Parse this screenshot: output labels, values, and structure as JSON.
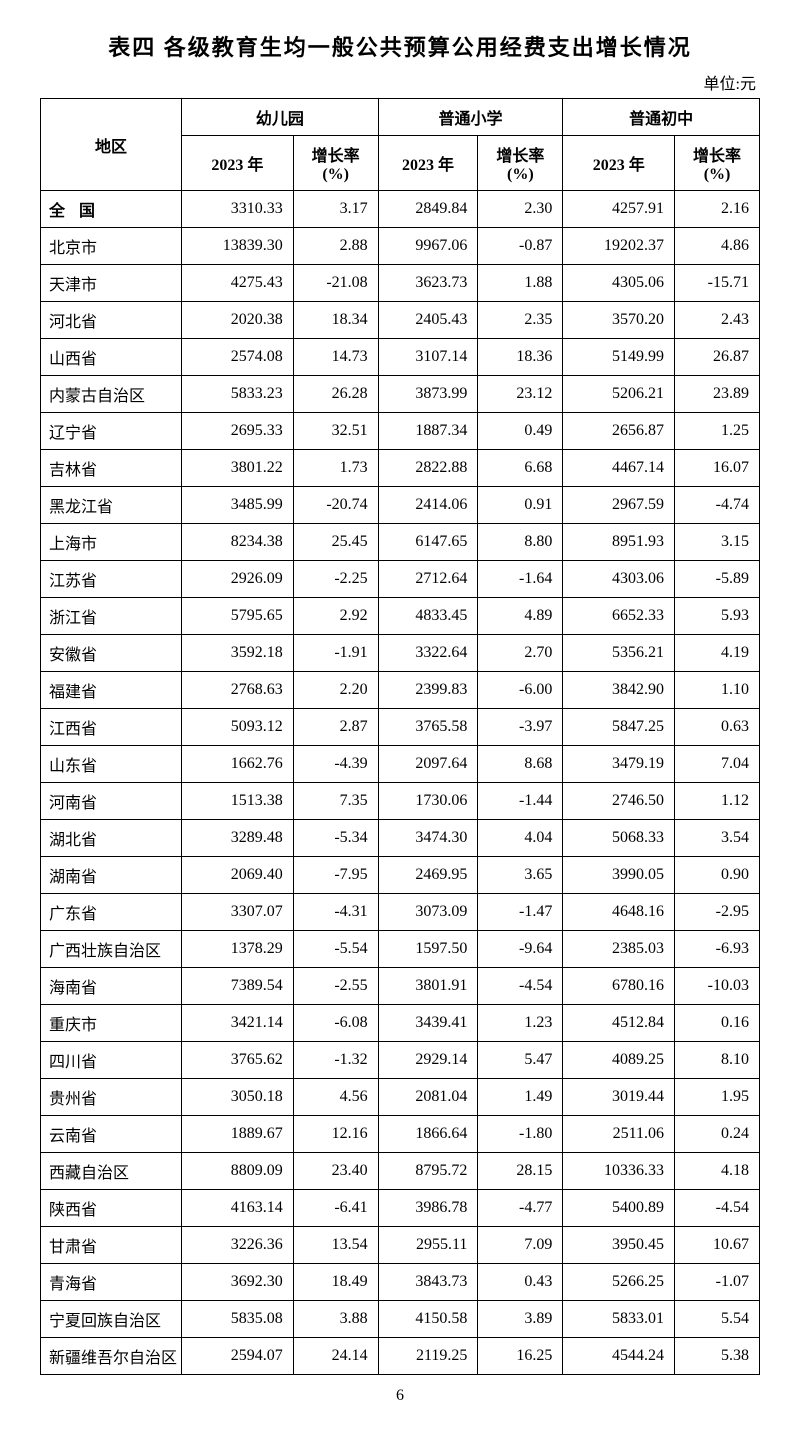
{
  "title": "表四  各级教育生均一般公共预算公用经费支出增长情况",
  "unit": "单位:元",
  "pageNumber": "6",
  "headers": {
    "region": "地区",
    "groups": [
      "幼儿园",
      "普通小学",
      "普通初中"
    ],
    "sub": [
      "2023 年",
      "增长率\n(%)"
    ]
  },
  "rows": [
    {
      "region": "全国",
      "national": true,
      "values": [
        "3310.33",
        "3.17",
        "2849.84",
        "2.30",
        "4257.91",
        "2.16"
      ]
    },
    {
      "region": "北京市",
      "values": [
        "13839.30",
        "2.88",
        "9967.06",
        "-0.87",
        "19202.37",
        "4.86"
      ]
    },
    {
      "region": "天津市",
      "values": [
        "4275.43",
        "-21.08",
        "3623.73",
        "1.88",
        "4305.06",
        "-15.71"
      ]
    },
    {
      "region": "河北省",
      "values": [
        "2020.38",
        "18.34",
        "2405.43",
        "2.35",
        "3570.20",
        "2.43"
      ]
    },
    {
      "region": "山西省",
      "values": [
        "2574.08",
        "14.73",
        "3107.14",
        "18.36",
        "5149.99",
        "26.87"
      ]
    },
    {
      "region": "内蒙古自治区",
      "values": [
        "5833.23",
        "26.28",
        "3873.99",
        "23.12",
        "5206.21",
        "23.89"
      ]
    },
    {
      "region": "辽宁省",
      "values": [
        "2695.33",
        "32.51",
        "1887.34",
        "0.49",
        "2656.87",
        "1.25"
      ]
    },
    {
      "region": "吉林省",
      "values": [
        "3801.22",
        "1.73",
        "2822.88",
        "6.68",
        "4467.14",
        "16.07"
      ]
    },
    {
      "region": "黑龙江省",
      "values": [
        "3485.99",
        "-20.74",
        "2414.06",
        "0.91",
        "2967.59",
        "-4.74"
      ]
    },
    {
      "region": "上海市",
      "values": [
        "8234.38",
        "25.45",
        "6147.65",
        "8.80",
        "8951.93",
        "3.15"
      ]
    },
    {
      "region": "江苏省",
      "values": [
        "2926.09",
        "-2.25",
        "2712.64",
        "-1.64",
        "4303.06",
        "-5.89"
      ]
    },
    {
      "region": "浙江省",
      "values": [
        "5795.65",
        "2.92",
        "4833.45",
        "4.89",
        "6652.33",
        "5.93"
      ]
    },
    {
      "region": "安徽省",
      "values": [
        "3592.18",
        "-1.91",
        "3322.64",
        "2.70",
        "5356.21",
        "4.19"
      ]
    },
    {
      "region": "福建省",
      "values": [
        "2768.63",
        "2.20",
        "2399.83",
        "-6.00",
        "3842.90",
        "1.10"
      ]
    },
    {
      "region": "江西省",
      "values": [
        "5093.12",
        "2.87",
        "3765.58",
        "-3.97",
        "5847.25",
        "0.63"
      ]
    },
    {
      "region": "山东省",
      "values": [
        "1662.76",
        "-4.39",
        "2097.64",
        "8.68",
        "3479.19",
        "7.04"
      ]
    },
    {
      "region": "河南省",
      "values": [
        "1513.38",
        "7.35",
        "1730.06",
        "-1.44",
        "2746.50",
        "1.12"
      ]
    },
    {
      "region": "湖北省",
      "values": [
        "3289.48",
        "-5.34",
        "3474.30",
        "4.04",
        "5068.33",
        "3.54"
      ]
    },
    {
      "region": "湖南省",
      "values": [
        "2069.40",
        "-7.95",
        "2469.95",
        "3.65",
        "3990.05",
        "0.90"
      ]
    },
    {
      "region": "广东省",
      "values": [
        "3307.07",
        "-4.31",
        "3073.09",
        "-1.47",
        "4648.16",
        "-2.95"
      ]
    },
    {
      "region": "广西壮族自治区",
      "values": [
        "1378.29",
        "-5.54",
        "1597.50",
        "-9.64",
        "2385.03",
        "-6.93"
      ]
    },
    {
      "region": "海南省",
      "values": [
        "7389.54",
        "-2.55",
        "3801.91",
        "-4.54",
        "6780.16",
        "-10.03"
      ]
    },
    {
      "region": "重庆市",
      "values": [
        "3421.14",
        "-6.08",
        "3439.41",
        "1.23",
        "4512.84",
        "0.16"
      ]
    },
    {
      "region": "四川省",
      "values": [
        "3765.62",
        "-1.32",
        "2929.14",
        "5.47",
        "4089.25",
        "8.10"
      ]
    },
    {
      "region": "贵州省",
      "values": [
        "3050.18",
        "4.56",
        "2081.04",
        "1.49",
        "3019.44",
        "1.95"
      ]
    },
    {
      "region": "云南省",
      "values": [
        "1889.67",
        "12.16",
        "1866.64",
        "-1.80",
        "2511.06",
        "0.24"
      ]
    },
    {
      "region": "西藏自治区",
      "values": [
        "8809.09",
        "23.40",
        "8795.72",
        "28.15",
        "10336.33",
        "4.18"
      ]
    },
    {
      "region": "陕西省",
      "values": [
        "4163.14",
        "-6.41",
        "3986.78",
        "-4.77",
        "5400.89",
        "-4.54"
      ]
    },
    {
      "region": "甘肃省",
      "values": [
        "3226.36",
        "13.54",
        "2955.11",
        "7.09",
        "3950.45",
        "10.67"
      ]
    },
    {
      "region": "青海省",
      "values": [
        "3692.30",
        "18.49",
        "3843.73",
        "0.43",
        "5266.25",
        "-1.07"
      ]
    },
    {
      "region": "宁夏回族自治区",
      "values": [
        "5835.08",
        "3.88",
        "4150.58",
        "3.89",
        "5833.01",
        "5.54"
      ]
    },
    {
      "region": "新疆维吾尔自治区",
      "values": [
        "2594.07",
        "24.14",
        "2119.25",
        "16.25",
        "4544.24",
        "5.38"
      ]
    }
  ]
}
